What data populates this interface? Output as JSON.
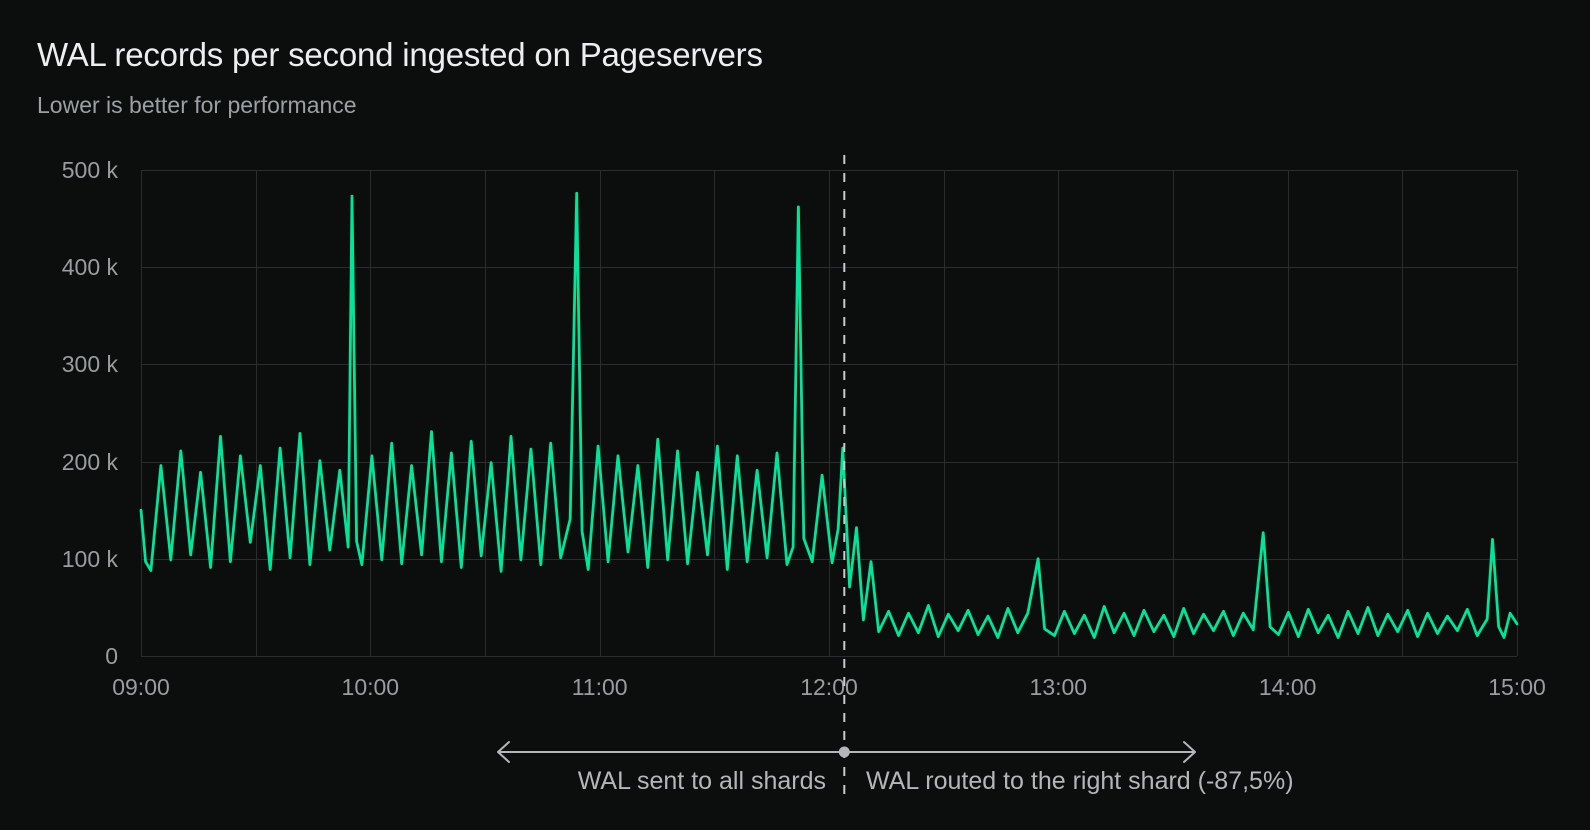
{
  "header": {
    "title": "WAL records per second ingested on Pageservers",
    "subtitle": "Lower is better for performance"
  },
  "annotation": {
    "left_label": "WAL sent to all shards",
    "right_label": "WAL routed to the right shard (-87,5%)"
  },
  "chart_data": {
    "type": "line",
    "title": "WAL records per second ingested on Pageservers",
    "subtitle": "Lower is better for performance",
    "series_name": "WAL records per second",
    "line_color": "#00e599",
    "background_color": "#0c0d0d",
    "grid": true,
    "grid_color": "#2a2c2d",
    "legend": "none",
    "xlabel": "",
    "ylabel": "",
    "x_range": [
      "09:00",
      "15:00"
    ],
    "x_tick_labels": [
      "09:00",
      "10:00",
      "11:00",
      "12:00",
      "13:00",
      "14:00",
      "15:00"
    ],
    "x_gridline_interval_minutes": 30,
    "ylim": [
      0,
      500000
    ],
    "y_tick_labels_top_to_bottom": [
      "500 k",
      "400 k",
      "300 k",
      "200 k",
      "100 k",
      "0"
    ],
    "y_unit": "records per second (values below in thousands)",
    "divider_minutes_after_start": 184,
    "divider_time": "12:04",
    "hourly_spikes": [
      {
        "time": "09:55",
        "value_k": 473
      },
      {
        "time": "10:54",
        "value_k": 476
      },
      {
        "time": "11:52",
        "value_k": 462
      },
      {
        "time": "12:55",
        "value_k": 100
      },
      {
        "time": "13:54",
        "value_k": 127
      },
      {
        "time": "14:54",
        "value_k": 120
      }
    ],
    "points_format": "[minutes_after_09:00, thousands_of_records_per_second]",
    "points": [
      [
        0,
        150
      ],
      [
        1.2,
        97
      ],
      [
        2.6,
        88
      ],
      [
        5.2,
        196
      ],
      [
        7.8,
        99
      ],
      [
        10.4,
        211
      ],
      [
        13,
        104
      ],
      [
        15.6,
        189
      ],
      [
        18.2,
        91
      ],
      [
        20.8,
        226
      ],
      [
        23.4,
        97
      ],
      [
        26,
        206
      ],
      [
        28.6,
        117
      ],
      [
        31.2,
        196
      ],
      [
        33.8,
        89
      ],
      [
        36.4,
        214
      ],
      [
        39,
        101
      ],
      [
        41.6,
        229
      ],
      [
        44.2,
        94
      ],
      [
        46.8,
        201
      ],
      [
        49.4,
        109
      ],
      [
        52,
        191
      ],
      [
        54.2,
        112
      ],
      [
        55.2,
        473
      ],
      [
        56.4,
        118
      ],
      [
        57.8,
        94
      ],
      [
        60.4,
        206
      ],
      [
        63,
        99
      ],
      [
        65.6,
        219
      ],
      [
        68.2,
        95
      ],
      [
        70.8,
        196
      ],
      [
        73.4,
        104
      ],
      [
        76,
        231
      ],
      [
        78.6,
        97
      ],
      [
        81.2,
        209
      ],
      [
        83.8,
        91
      ],
      [
        86.4,
        221
      ],
      [
        89,
        103
      ],
      [
        91.6,
        199
      ],
      [
        94.2,
        87
      ],
      [
        96.8,
        226
      ],
      [
        99.4,
        99
      ],
      [
        102,
        213
      ],
      [
        104.6,
        94
      ],
      [
        107.2,
        219
      ],
      [
        109.8,
        101
      ],
      [
        112.3,
        141
      ],
      [
        114,
        476
      ],
      [
        115.4,
        128
      ],
      [
        117,
        89
      ],
      [
        119.6,
        216
      ],
      [
        122.2,
        97
      ],
      [
        124.8,
        206
      ],
      [
        127.4,
        107
      ],
      [
        130,
        196
      ],
      [
        132.6,
        91
      ],
      [
        135.2,
        223
      ],
      [
        137.8,
        99
      ],
      [
        140.4,
        211
      ],
      [
        143,
        95
      ],
      [
        145.6,
        189
      ],
      [
        148.2,
        104
      ],
      [
        150.8,
        216
      ],
      [
        153.4,
        89
      ],
      [
        156,
        206
      ],
      [
        158.6,
        97
      ],
      [
        161.2,
        191
      ],
      [
        163.8,
        101
      ],
      [
        166.4,
        209
      ],
      [
        169,
        94
      ],
      [
        170.6,
        112
      ],
      [
        172,
        462
      ],
      [
        173.4,
        121
      ],
      [
        175.6,
        97
      ],
      [
        178.2,
        186
      ],
      [
        180.8,
        96
      ],
      [
        182.4,
        131
      ],
      [
        183.6,
        214
      ],
      [
        185.4,
        71
      ],
      [
        187.2,
        132
      ],
      [
        189,
        37
      ],
      [
        191,
        97
      ],
      [
        193,
        25
      ],
      [
        195.6,
        46
      ],
      [
        198.2,
        21
      ],
      [
        200.8,
        44
      ],
      [
        203.4,
        24
      ],
      [
        206,
        52
      ],
      [
        208.6,
        20
      ],
      [
        211.2,
        43
      ],
      [
        213.8,
        26
      ],
      [
        216.4,
        47
      ],
      [
        219,
        22
      ],
      [
        221.6,
        41
      ],
      [
        224.2,
        19
      ],
      [
        226.8,
        49
      ],
      [
        229.4,
        24
      ],
      [
        232,
        44
      ],
      [
        234.7,
        100
      ],
      [
        236.4,
        28
      ],
      [
        239,
        21
      ],
      [
        241.6,
        46
      ],
      [
        244.2,
        23
      ],
      [
        246.8,
        42
      ],
      [
        249.4,
        19
      ],
      [
        252,
        51
      ],
      [
        254.6,
        24
      ],
      [
        257.2,
        44
      ],
      [
        259.8,
        21
      ],
      [
        262.4,
        47
      ],
      [
        265,
        25
      ],
      [
        267.6,
        42
      ],
      [
        270.2,
        20
      ],
      [
        272.8,
        49
      ],
      [
        275.4,
        23
      ],
      [
        278,
        43
      ],
      [
        280.6,
        26
      ],
      [
        283.2,
        46
      ],
      [
        285.8,
        21
      ],
      [
        288.4,
        44
      ],
      [
        291,
        27
      ],
      [
        293.6,
        127
      ],
      [
        295.4,
        30
      ],
      [
        297.6,
        22
      ],
      [
        300.2,
        45
      ],
      [
        302.8,
        20
      ],
      [
        305.4,
        48
      ],
      [
        308,
        24
      ],
      [
        310.6,
        42
      ],
      [
        313.2,
        19
      ],
      [
        315.8,
        46
      ],
      [
        318.4,
        23
      ],
      [
        321,
        50
      ],
      [
        323.6,
        21
      ],
      [
        326.2,
        43
      ],
      [
        328.8,
        25
      ],
      [
        331.4,
        47
      ],
      [
        334,
        20
      ],
      [
        336.6,
        44
      ],
      [
        339.2,
        23
      ],
      [
        341.8,
        41
      ],
      [
        344.4,
        26
      ],
      [
        347,
        48
      ],
      [
        349.6,
        21
      ],
      [
        352.2,
        38
      ],
      [
        353.6,
        120
      ],
      [
        355.2,
        30
      ],
      [
        356.6,
        19
      ],
      [
        358.2,
        44
      ],
      [
        360,
        33
      ]
    ]
  }
}
